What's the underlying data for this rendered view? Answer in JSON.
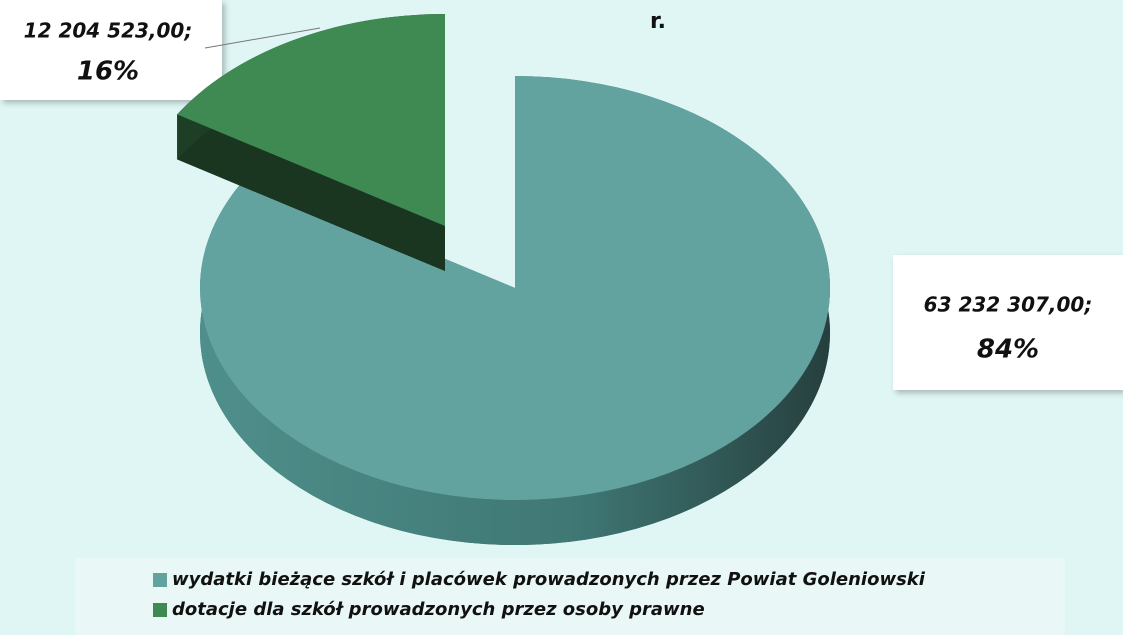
{
  "chart_data": {
    "type": "pie",
    "title": "r.",
    "categories": [
      "wydatki bieżące szkół i placówek prowadzonych przez Powiat Goleniowski",
      "dotacje dla szkół prowadzonych przez osoby  prawne"
    ],
    "values": [
      63232307.0,
      12204523.0
    ],
    "value_labels": [
      "63 232 307,00;",
      "12 204 523,00;"
    ],
    "percent_labels": [
      "84%",
      "16%"
    ],
    "colors": [
      "#62a39f",
      "#3f8a52"
    ],
    "legend": "bottom"
  }
}
